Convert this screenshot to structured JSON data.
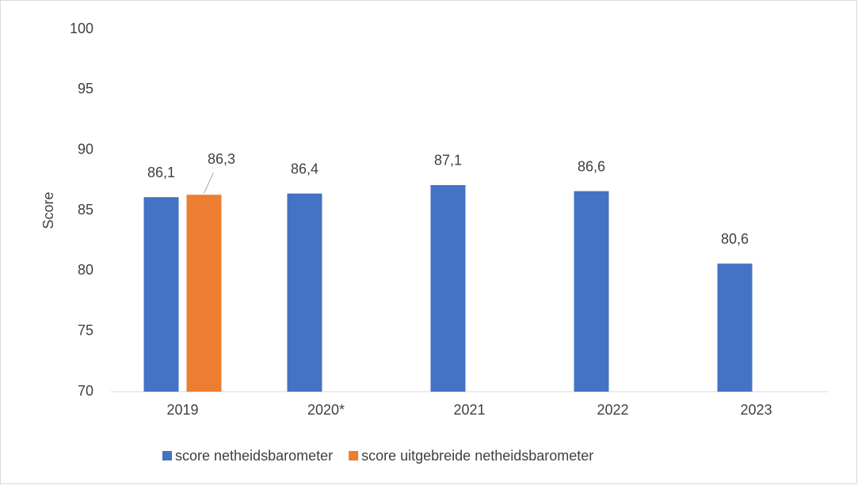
{
  "chart_data": {
    "type": "bar",
    "y_label": "Score",
    "categories": [
      "2019",
      "2020*",
      "2021",
      "2022",
      "2023"
    ],
    "series": [
      {
        "name": "score netheidsbarometer",
        "color": "#4472c4",
        "values": [
          86.1,
          86.4,
          87.1,
          86.6,
          80.6
        ],
        "value_labels": [
          "86,1",
          "86,4",
          "87,1",
          "86,6",
          "80,6"
        ]
      },
      {
        "name": "score uitgebreide netheidsbarometer",
        "color": "#ed7d31",
        "values": [
          86.3,
          null,
          null,
          null,
          null
        ],
        "value_labels": [
          "86,3",
          null,
          null,
          null,
          null
        ]
      }
    ],
    "ylim": [
      70,
      100
    ],
    "yticks": [
      70,
      75,
      80,
      85,
      90,
      95,
      100
    ],
    "grid": false,
    "legend": "bottom"
  }
}
